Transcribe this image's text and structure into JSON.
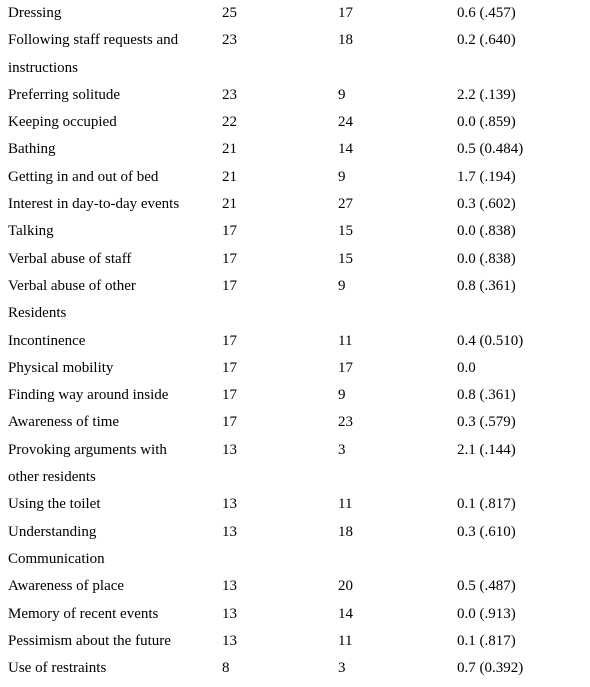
{
  "table": {
    "rows": [
      {
        "label": [
          "Dressing"
        ],
        "a": "25",
        "b": "17",
        "c": "0.6 (.457)"
      },
      {
        "label": [
          "Following staff requests and",
          "instructions"
        ],
        "a": "23",
        "b": "18",
        "c": "0.2 (.640)"
      },
      {
        "label": [
          "Preferring solitude"
        ],
        "a": "23",
        "b": "9",
        "c": "2.2 (.139)"
      },
      {
        "label": [
          "Keeping occupied"
        ],
        "a": "22",
        "b": "24",
        "c": "0.0 (.859)"
      },
      {
        "label": [
          "Bathing"
        ],
        "a": "21",
        "b": "14",
        "c": "0.5 (0.484)"
      },
      {
        "label": [
          "Getting in and out of bed"
        ],
        "a": "21",
        "b": "9",
        "c": "1.7 (.194)"
      },
      {
        "label": [
          "Interest in day-to-day events"
        ],
        "a": "21",
        "b": "27",
        "c": "0.3 (.602)"
      },
      {
        "label": [
          "Talking"
        ],
        "a": "17",
        "b": "15",
        "c": "0.0 (.838)"
      },
      {
        "label": [
          "Verbal abuse of staff"
        ],
        "a": "17",
        "b": "15",
        "c": "0.0 (.838)"
      },
      {
        "label": [
          "Verbal abuse of other",
          "Residents"
        ],
        "a": "17",
        "b": "9",
        "c": "0.8 (.361)"
      },
      {
        "label": [
          "Incontinence"
        ],
        "a": "17",
        "b": "11",
        "c": "0.4 (0.510)"
      },
      {
        "label": [
          "Physical mobility"
        ],
        "a": "17",
        "b": "17",
        "c": "0.0"
      },
      {
        "label": [
          "Finding way around inside"
        ],
        "a": "17",
        "b": "9",
        "c": "0.8 (.361)"
      },
      {
        "label": [
          "Awareness of time"
        ],
        "a": "17",
        "b": "23",
        "c": "0.3 (.579)"
      },
      {
        "label": [
          "Provoking arguments with",
          "other residents"
        ],
        "a": "13",
        "b": "3",
        "c": "2.1 (.144)"
      },
      {
        "label": [
          "Using the toilet"
        ],
        "a": "13",
        "b": "11",
        "c": "0.1 (.817)"
      },
      {
        "label": [
          "Understanding",
          "Communication"
        ],
        "a": "13",
        "b": "18",
        "c": "0.3 (.610)"
      },
      {
        "label": [
          "Awareness of place"
        ],
        "a": "13",
        "b": "20",
        "c": "0.5 (.487)"
      },
      {
        "label": [
          "Memory of recent events"
        ],
        "a": "13",
        "b": "14",
        "c": "0.0 (.913)"
      },
      {
        "label": [
          "Pessimism about the future"
        ],
        "a": "13",
        "b": "11",
        "c": "0.1 (.817)"
      },
      {
        "label": [
          "Use of restraints"
        ],
        "a": "8",
        "b": "3",
        "c": "0.7 (0.392)"
      }
    ]
  }
}
